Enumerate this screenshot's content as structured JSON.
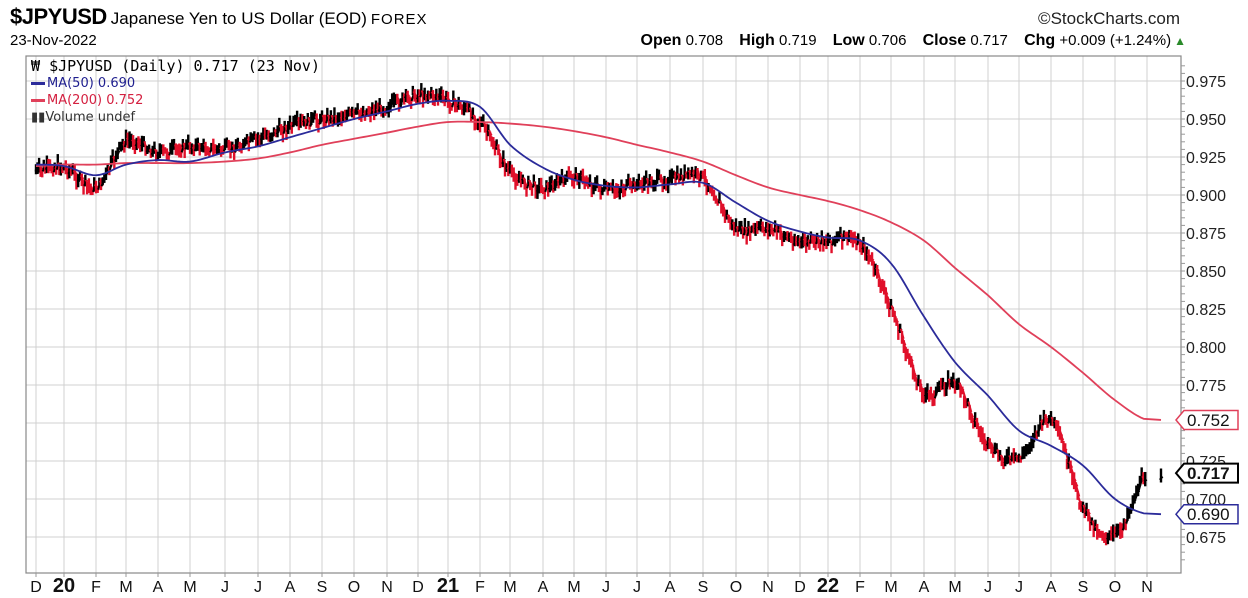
{
  "header": {
    "symbol": "$JPYUSD",
    "description": "Japanese Yen to US Dollar (EOD)",
    "exchange": "FOREX",
    "date": "23-Nov-2022",
    "brand": "©StockCharts.com",
    "open_label": "Open",
    "open": "0.708",
    "high_label": "High",
    "high": "0.719",
    "low_label": "Low",
    "low": "0.706",
    "close_label": "Close",
    "close": "0.717",
    "chg_label": "Chg",
    "chg": "+0.009 (+1.24%)",
    "chg_icon": "up-triangle-icon"
  },
  "legend": {
    "main": "$JPYUSD (Daily) 0.717 (23 Nov)",
    "ma50": "MA(50) 0.690",
    "ma200": "MA(200) 0.752",
    "volume": "Volume undef"
  },
  "colors": {
    "ma50": "#2b2b9a",
    "ma200": "#e0405a",
    "up_bar": "#000000",
    "down_bar": "#e0102a",
    "grid": "#d0d0d0",
    "frame": "#888888"
  },
  "price_tags": {
    "ma200": "0.752",
    "close": "0.717",
    "ma50": "0.690"
  },
  "chart_data": {
    "type": "line",
    "title": "$JPYUSD Japanese Yen to US Dollar (EOD) FOREX",
    "xlabel": "",
    "ylabel": "",
    "ylim": [
      0.655,
      0.99
    ],
    "yticks": [
      "0.975",
      "0.950",
      "0.925",
      "0.900",
      "0.875",
      "0.850",
      "0.825",
      "0.800",
      "0.775",
      "0.750",
      "0.725",
      "0.700",
      "0.675"
    ],
    "xticks": [
      "D",
      "20",
      "F",
      "M",
      "A",
      "M",
      "J",
      "J",
      "A",
      "S",
      "O",
      "N",
      "D",
      "21",
      "F",
      "M",
      "A",
      "M",
      "J",
      "J",
      "A",
      "S",
      "O",
      "N",
      "D",
      "22",
      "F",
      "M",
      "A",
      "M",
      "J",
      "J",
      "A",
      "S",
      "O",
      "N"
    ],
    "grid": true,
    "legend_position": "top-left",
    "x": [
      "Dec-19",
      "Jan-20",
      "Feb-20",
      "Mar-20",
      "Apr-20",
      "May-20",
      "Jun-20",
      "Jul-20",
      "Aug-20",
      "Sep-20",
      "Oct-20",
      "Nov-20",
      "Dec-20",
      "Jan-21",
      "Feb-21",
      "Mar-21",
      "Apr-21",
      "May-21",
      "Jun-21",
      "Jul-21",
      "Aug-21",
      "Sep-21",
      "Oct-21",
      "Nov-21",
      "Dec-21",
      "Jan-22",
      "Feb-22",
      "Mar-22",
      "Apr-22",
      "May-22",
      "Jun-22",
      "Jul-22",
      "Aug-22",
      "Sep-22",
      "Oct-22",
      "Nov-22"
    ],
    "series": [
      {
        "name": "$JPYUSD",
        "values": [
          0.916,
          0.918,
          0.905,
          0.935,
          0.928,
          0.932,
          0.93,
          0.937,
          0.945,
          0.95,
          0.953,
          0.958,
          0.966,
          0.962,
          0.948,
          0.915,
          0.905,
          0.912,
          0.903,
          0.907,
          0.91,
          0.911,
          0.878,
          0.878,
          0.869,
          0.87,
          0.868,
          0.825,
          0.77,
          0.776,
          0.735,
          0.727,
          0.752,
          0.694,
          0.676,
          0.717
        ]
      },
      {
        "name": "MA(50)",
        "values": [
          0.92,
          0.919,
          0.913,
          0.92,
          0.923,
          0.922,
          0.928,
          0.932,
          0.938,
          0.944,
          0.95,
          0.955,
          0.96,
          0.962,
          0.958,
          0.933,
          0.918,
          0.91,
          0.906,
          0.905,
          0.907,
          0.908,
          0.895,
          0.883,
          0.876,
          0.872,
          0.87,
          0.855,
          0.82,
          0.79,
          0.768,
          0.745,
          0.735,
          0.722,
          0.7,
          0.69
        ]
      },
      {
        "name": "MA(200)",
        "values": [
          0.919,
          0.92,
          0.92,
          0.921,
          0.921,
          0.921,
          0.922,
          0.924,
          0.928,
          0.933,
          0.937,
          0.941,
          0.945,
          0.948,
          0.948,
          0.947,
          0.945,
          0.942,
          0.938,
          0.933,
          0.928,
          0.922,
          0.913,
          0.905,
          0.9,
          0.896,
          0.89,
          0.882,
          0.87,
          0.852,
          0.834,
          0.815,
          0.8,
          0.783,
          0.765,
          0.752
        ]
      }
    ]
  }
}
